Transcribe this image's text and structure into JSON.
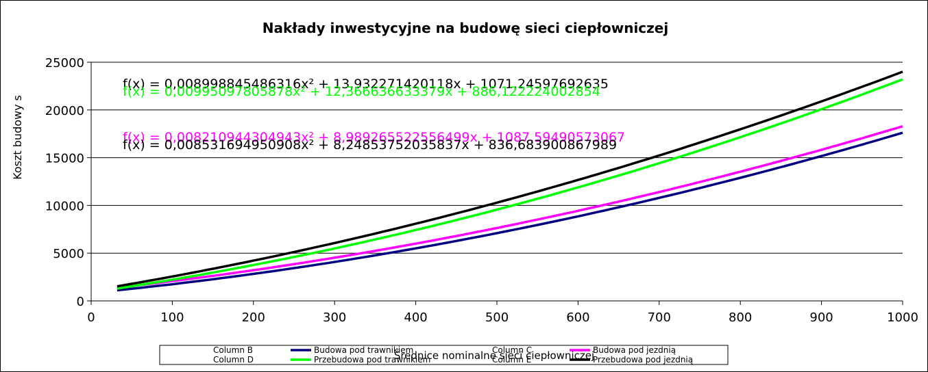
{
  "chart_data": {
    "type": "line",
    "title": "Nakłady inwestycyjne na budowę sieci ciepłowniczej",
    "xlabel": "Średnice nominalne sieci ciepłowniczej",
    "ylabel": "Koszt budowy s",
    "xlim": [
      0,
      1000
    ],
    "ylim": [
      0,
      25000
    ],
    "x_ticks": [
      "0",
      "100",
      "200",
      "300",
      "400",
      "500",
      "600",
      "700",
      "800",
      "900",
      "1000"
    ],
    "y_ticks": [
      "0",
      "5000",
      "10000",
      "15000",
      "20000",
      "25000"
    ],
    "grid": "horizontal",
    "legend_position": "bottom",
    "x_range": [
      32,
      1000
    ],
    "series": [
      {
        "name": "Budowa pod trawnikiem",
        "color": "#000080",
        "coefficients": [
          0.008531694950908,
          8.24853752035837,
          836.683900867989
        ]
      },
      {
        "name": "Budowa pod jezdnią",
        "color": "#ff00ff",
        "coefficients": [
          0.008210944304943,
          8.989265522556499,
          1087.59490573067
        ]
      },
      {
        "name": "Przebudowa pod trawnikiem",
        "color": "#00ff00",
        "coefficients": [
          0.00995097805878,
          12.366636633379,
          886.122224002854
        ]
      },
      {
        "name": "Przebudowa pod jezdnią",
        "color": "#000000",
        "coefficients": [
          0.008998845486316,
          13.932271420118,
          1071.24597692635
        ]
      }
    ],
    "equations": [
      {
        "text": "f(x) = 0,008998845486316x² + 13,932271420118x + 1071,24597692635",
        "color": "#000000"
      },
      {
        "text": "f(x) = 0,00995097805878x² + 12,366636633379x + 886,122224002854",
        "color": "#00ff00"
      },
      {
        "text": "f(x) = 0,008210944304943x² + 8,989265522556499x + 1087,59490573067",
        "color": "#ff00ff"
      },
      {
        "text": "f(x) = 0,008531694950908x² + 8,24853752035837x + 836,683900867989",
        "color": "#000000"
      }
    ],
    "legend": [
      {
        "label": "Column B",
        "swatch": false
      },
      {
        "label": "Budowa pod trawnikiem",
        "swatch": true,
        "color": "#000080"
      },
      {
        "label": "Column C",
        "swatch": false
      },
      {
        "label": "Budowa pod jezdnią",
        "swatch": true,
        "color": "#ff00ff"
      },
      {
        "label": "Column D",
        "swatch": false
      },
      {
        "label": "Przebudowa pod trawnikiem",
        "swatch": true,
        "color": "#00ff00"
      },
      {
        "label": "Column E",
        "swatch": false
      },
      {
        "label": "Przebudowa pod jezdnią",
        "swatch": true,
        "color": "#000000"
      }
    ]
  }
}
